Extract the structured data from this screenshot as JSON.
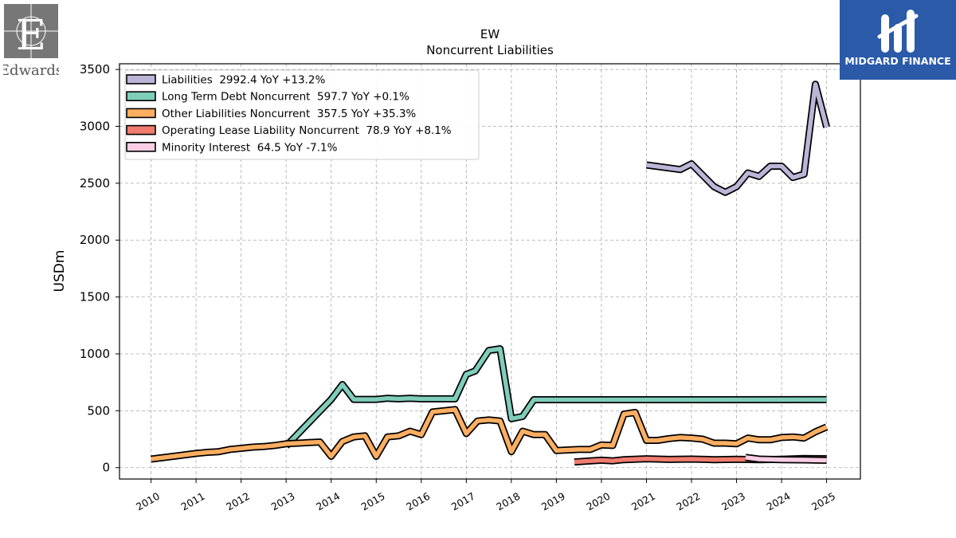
{
  "logos": {
    "left_name": "Edwards",
    "right_name": "MIDGARD FINANCE"
  },
  "chart_data": {
    "type": "line",
    "title": "EW",
    "subtitle": "Noncurrent  Liabilities",
    "ylabel": "USDm",
    "xlabel": "",
    "ylim": [
      -100,
      3550
    ],
    "xlim": [
      2009.3,
      2025.75
    ],
    "grid": true,
    "legend_position": "top-left",
    "y_ticks": [
      0,
      500,
      1000,
      1500,
      2000,
      2500,
      3000,
      3500
    ],
    "x_ticks": [
      "2010",
      "2011",
      "2012",
      "2013",
      "2014",
      "2015",
      "2016",
      "2017",
      "2018",
      "2019",
      "2020",
      "2021",
      "2022",
      "2023",
      "2024",
      "2025"
    ],
    "series": [
      {
        "name": "Liabilities",
        "legend_label": "Liabilities  2992.4 YoY +13.2%",
        "color": "#bcb5d8",
        "points": [
          [
            2021.0,
            2660
          ],
          [
            2021.75,
            2620
          ],
          [
            2022.0,
            2670
          ],
          [
            2022.25,
            2570
          ],
          [
            2022.5,
            2470
          ],
          [
            2022.75,
            2420
          ],
          [
            2023.0,
            2470
          ],
          [
            2023.25,
            2590
          ],
          [
            2023.5,
            2560
          ],
          [
            2023.75,
            2650
          ],
          [
            2024.0,
            2650
          ],
          [
            2024.25,
            2550
          ],
          [
            2024.5,
            2580
          ],
          [
            2024.75,
            3370
          ],
          [
            2025.0,
            2992.4
          ]
        ]
      },
      {
        "name": "Long Term Debt Noncurrent",
        "legend_label": "Long Term Debt Noncurrent  597.7 YoY +0.1%",
        "color": "#7fcdbb",
        "points": [
          [
            2013.0,
            190
          ],
          [
            2014.0,
            600
          ],
          [
            2014.25,
            730
          ],
          [
            2014.5,
            600
          ],
          [
            2015.0,
            600
          ],
          [
            2015.25,
            610
          ],
          [
            2015.5,
            605
          ],
          [
            2015.75,
            610
          ],
          [
            2016.0,
            605
          ],
          [
            2016.5,
            605
          ],
          [
            2016.75,
            605
          ],
          [
            2017.0,
            820
          ],
          [
            2017.2,
            850
          ],
          [
            2017.5,
            1030
          ],
          [
            2017.75,
            1045
          ],
          [
            2018.0,
            430
          ],
          [
            2018.25,
            450
          ],
          [
            2018.5,
            597
          ],
          [
            2025.0,
            597.7
          ]
        ]
      },
      {
        "name": "Other Liabilities Noncurrent",
        "legend_label": "Other Liabilities Noncurrent  357.5 YoY +35.3%",
        "color": "#fdae61",
        "points": [
          [
            2010.0,
            75
          ],
          [
            2010.5,
            100
          ],
          [
            2011.0,
            125
          ],
          [
            2011.25,
            135
          ],
          [
            2011.5,
            140
          ],
          [
            2011.75,
            160
          ],
          [
            2012.0,
            170
          ],
          [
            2012.25,
            180
          ],
          [
            2012.5,
            185
          ],
          [
            2012.75,
            195
          ],
          [
            2013.0,
            210
          ],
          [
            2013.5,
            220
          ],
          [
            2013.75,
            225
          ],
          [
            2014.0,
            100
          ],
          [
            2014.25,
            230
          ],
          [
            2014.5,
            270
          ],
          [
            2014.75,
            280
          ],
          [
            2015.0,
            100
          ],
          [
            2015.25,
            270
          ],
          [
            2015.5,
            280
          ],
          [
            2015.75,
            320
          ],
          [
            2016.0,
            290
          ],
          [
            2016.25,
            490
          ],
          [
            2016.5,
            500
          ],
          [
            2016.75,
            510
          ],
          [
            2017.0,
            300
          ],
          [
            2017.25,
            410
          ],
          [
            2017.5,
            420
          ],
          [
            2017.75,
            410
          ],
          [
            2018.0,
            140
          ],
          [
            2018.25,
            320
          ],
          [
            2018.5,
            290
          ],
          [
            2018.75,
            290
          ],
          [
            2019.0,
            150
          ],
          [
            2019.5,
            160
          ],
          [
            2019.75,
            160
          ],
          [
            2020.0,
            200
          ],
          [
            2020.25,
            195
          ],
          [
            2020.5,
            470
          ],
          [
            2020.75,
            485
          ],
          [
            2021.0,
            240
          ],
          [
            2021.25,
            240
          ],
          [
            2021.5,
            255
          ],
          [
            2021.75,
            265
          ],
          [
            2022.0,
            260
          ],
          [
            2022.25,
            250
          ],
          [
            2022.5,
            215
          ],
          [
            2022.75,
            215
          ],
          [
            2023.0,
            210
          ],
          [
            2023.25,
            260
          ],
          [
            2023.5,
            245
          ],
          [
            2023.75,
            245
          ],
          [
            2024.0,
            265
          ],
          [
            2024.25,
            270
          ],
          [
            2024.5,
            260
          ],
          [
            2024.75,
            315
          ],
          [
            2025.0,
            357.5
          ]
        ]
      },
      {
        "name": "Operating Lease Liability Noncurrent",
        "legend_label": "Operating Lease Liability Noncurrent  78.9 YoY +8.1%",
        "color": "#f07c6f",
        "points": [
          [
            2019.4,
            50
          ],
          [
            2019.75,
            60
          ],
          [
            2020.0,
            65
          ],
          [
            2020.25,
            60
          ],
          [
            2020.5,
            70
          ],
          [
            2021.0,
            78
          ],
          [
            2021.5,
            72
          ],
          [
            2022.0,
            75
          ],
          [
            2022.5,
            70
          ],
          [
            2023.0,
            73
          ],
          [
            2023.5,
            70
          ],
          [
            2024.0,
            73
          ],
          [
            2024.5,
            80
          ],
          [
            2025.0,
            78.9
          ]
        ]
      },
      {
        "name": "Minority Interest",
        "legend_label": "Minority Interest  64.5 YoY -7.1%",
        "color": "#fccde5",
        "points": [
          [
            2023.2,
            90
          ],
          [
            2023.5,
            75
          ],
          [
            2024.0,
            70
          ],
          [
            2024.5,
            68
          ],
          [
            2025.0,
            64.5
          ]
        ]
      }
    ]
  }
}
